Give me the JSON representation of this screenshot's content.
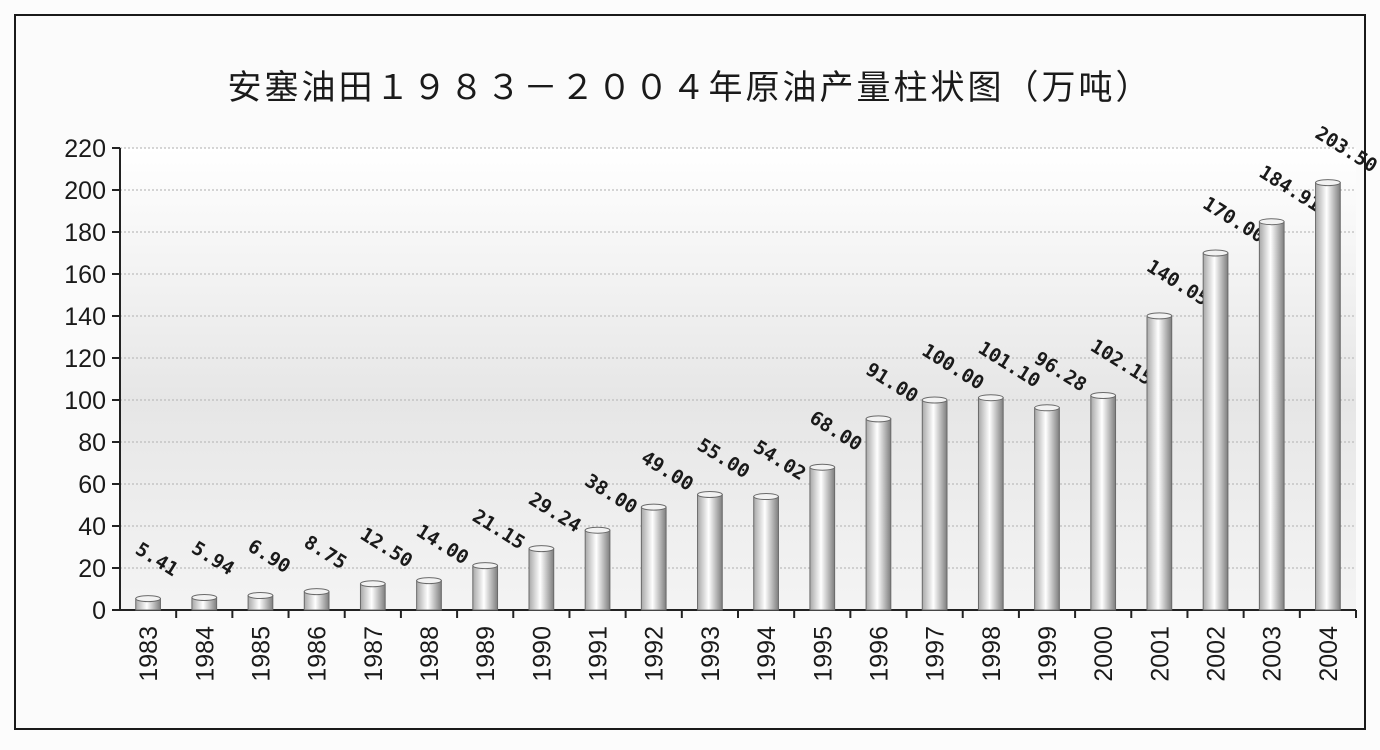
{
  "chart_data": {
    "type": "bar",
    "title": "安塞油田１９８３－２００４年原油产量柱状图（万吨）",
    "xlabel": "",
    "ylabel": "",
    "ylim": [
      0,
      220
    ],
    "y_ticks": [
      0,
      20,
      40,
      60,
      80,
      100,
      120,
      140,
      160,
      180,
      200,
      220
    ],
    "grid": true,
    "categories": [
      "1983",
      "1984",
      "1985",
      "1986",
      "1987",
      "1988",
      "1989",
      "1990",
      "1991",
      "1992",
      "1993",
      "1994",
      "1995",
      "1996",
      "1997",
      "1998",
      "1999",
      "2000",
      "2001",
      "2002",
      "2003",
      "2004"
    ],
    "values": [
      5.41,
      5.94,
      6.9,
      8.75,
      12.5,
      14.0,
      21.15,
      29.24,
      38.0,
      49.0,
      55.0,
      54.02,
      68.0,
      91.0,
      100.0,
      101.1,
      96.28,
      102.15,
      140.05,
      170.0,
      184.91,
      203.5
    ],
    "data_labels": [
      "5.41",
      "5.94",
      "6.90",
      "8.75",
      "12.50",
      "14.00",
      "21.15",
      "29.24",
      "38.00",
      "49.00",
      "55.00",
      "54.02",
      "68.00",
      "91.00",
      "100.00",
      "101.10",
      "96.28",
      "102.15",
      "140.05",
      "170.00",
      "184.91",
      "203.50"
    ]
  },
  "colors": {
    "bar_light": "#ffffff",
    "bar_dark": "#8f8f8f",
    "axis": "#222222",
    "grid": "#bdbdbd",
    "text": "#1a1a1a"
  }
}
